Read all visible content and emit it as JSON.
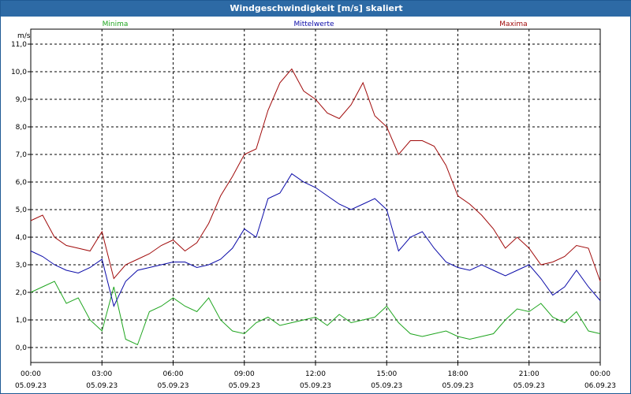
{
  "window": {
    "title": "Windgeschwindigkeit [m/s] skaliert"
  },
  "colors": {
    "titlebar": "#2d6aa5",
    "minima": "#1fa51f",
    "mittelwerte": "#0a0aa8",
    "maxima": "#a00a0a",
    "grid": "#000000"
  },
  "chart_data": {
    "type": "line",
    "title": "Windgeschwindigkeit [m/s] skaliert",
    "ylabel": "m/s",
    "ylim": [
      -0.5,
      11.3
    ],
    "yticks": [
      "0,0",
      "1,0",
      "2,0",
      "3,0",
      "4,0",
      "5,0",
      "6,0",
      "7,0",
      "8,0",
      "9,0",
      "10,0",
      "11,0"
    ],
    "xlim": [
      "05.09.23 00:00",
      "06.09.23 00:00"
    ],
    "xticks": [
      {
        "time": "00:00",
        "date": "05.09.23"
      },
      {
        "time": "03:00",
        "date": "05.09.23"
      },
      {
        "time": "06:00",
        "date": "05.09.23"
      },
      {
        "time": "09:00",
        "date": "05.09.23"
      },
      {
        "time": "12:00",
        "date": "05.09.23"
      },
      {
        "time": "15:00",
        "date": "05.09.23"
      },
      {
        "time": "18:00",
        "date": "05.09.23"
      },
      {
        "time": "21:00",
        "date": "05.09.23"
      },
      {
        "time": "00:00",
        "date": "06.09.23"
      }
    ],
    "grid": true,
    "x_hours": [
      0,
      0.5,
      1,
      1.5,
      2,
      2.5,
      3,
      3.5,
      4,
      4.5,
      5,
      5.5,
      6,
      6.5,
      7,
      7.5,
      8,
      8.5,
      9,
      9.5,
      10,
      10.5,
      11,
      11.5,
      12,
      12.5,
      13,
      13.5,
      14,
      14.5,
      15,
      15.5,
      16,
      16.5,
      17,
      17.5,
      18,
      18.5,
      19,
      19.5,
      20,
      20.5,
      21,
      21.5,
      22,
      22.5,
      23,
      23.5,
      24
    ],
    "series": [
      {
        "name": "Minima",
        "color": "#1fa51f",
        "values": [
          2.0,
          2.2,
          2.4,
          1.6,
          1.8,
          1.0,
          0.6,
          2.2,
          0.3,
          0.1,
          1.3,
          1.5,
          1.8,
          1.5,
          1.3,
          1.8,
          1.0,
          0.6,
          0.5,
          0.9,
          1.1,
          0.8,
          0.9,
          1.0,
          1.1,
          0.8,
          1.2,
          0.9,
          1.0,
          1.1,
          1.5,
          0.9,
          0.5,
          0.4,
          0.5,
          0.6,
          0.4,
          0.3,
          0.4,
          0.5,
          1.0,
          1.4,
          1.3,
          1.6,
          1.1,
          0.9,
          1.3,
          0.6,
          0.5
        ]
      },
      {
        "name": "Mittelwerte",
        "color": "#0a0aa8",
        "values": [
          3.5,
          3.3,
          3.0,
          2.8,
          2.7,
          2.9,
          3.2,
          1.5,
          2.4,
          2.8,
          2.9,
          3.0,
          3.1,
          3.1,
          2.9,
          3.0,
          3.2,
          3.6,
          4.3,
          4.0,
          5.4,
          5.6,
          6.3,
          6.0,
          5.8,
          5.5,
          5.2,
          5.0,
          5.2,
          5.4,
          5.0,
          3.5,
          4.0,
          4.2,
          3.6,
          3.1,
          2.9,
          2.8,
          3.0,
          2.8,
          2.6,
          2.8,
          3.0,
          2.5,
          1.9,
          2.2,
          2.8,
          2.2,
          1.7
        ]
      },
      {
        "name": "Maxima",
        "color": "#a00a0a",
        "values": [
          4.6,
          4.8,
          4.0,
          3.7,
          3.6,
          3.5,
          4.2,
          2.5,
          3.0,
          3.2,
          3.4,
          3.7,
          3.9,
          3.5,
          3.8,
          4.5,
          5.5,
          6.2,
          7.0,
          7.2,
          8.6,
          9.6,
          10.1,
          9.3,
          9.0,
          8.5,
          8.3,
          8.8,
          9.6,
          8.4,
          8.0,
          7.0,
          7.5,
          7.5,
          7.3,
          6.6,
          5.5,
          5.2,
          4.8,
          4.3,
          3.6,
          4.0,
          3.6,
          3.0,
          3.1,
          3.3,
          3.7,
          3.6,
          2.4
        ]
      }
    ]
  }
}
